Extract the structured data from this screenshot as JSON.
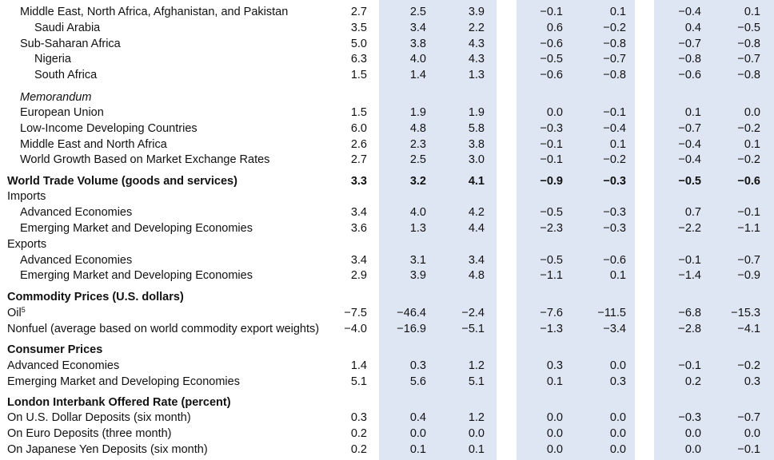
{
  "rows": [
    {
      "label": "Middle East, North Africa, Afghanistan, and Pakistan",
      "indent": 1,
      "values": [
        "2.7",
        "2.5",
        "3.9",
        "−0.1",
        "0.1",
        "−0.4",
        "0.1"
      ]
    },
    {
      "label": "Saudi Arabia",
      "indent": 2,
      "values": [
        "3.5",
        "3.4",
        "2.2",
        "0.6",
        "−0.2",
        "0.4",
        "−0.5"
      ]
    },
    {
      "label": "Sub-Saharan Africa",
      "indent": 1,
      "values": [
        "5.0",
        "3.8",
        "4.3",
        "−0.6",
        "−0.8",
        "−0.7",
        "−0.8"
      ]
    },
    {
      "label": "Nigeria",
      "indent": 2,
      "values": [
        "6.3",
        "4.0",
        "4.3",
        "−0.5",
        "−0.7",
        "−0.8",
        "−0.7"
      ]
    },
    {
      "label": "South Africa",
      "indent": 2,
      "values": [
        "1.5",
        "1.4",
        "1.3",
        "−0.6",
        "−0.8",
        "−0.6",
        "−0.8"
      ]
    },
    {
      "label": "Memorandum",
      "indent": 1,
      "italic": true
    },
    {
      "label": "European Union",
      "indent": 1,
      "values": [
        "1.5",
        "1.9",
        "1.9",
        "0.0",
        "−0.1",
        "0.1",
        "0.0"
      ]
    },
    {
      "label": "Low-Income Developing Countries",
      "indent": 1,
      "values": [
        "6.0",
        "4.8",
        "5.8",
        "−0.3",
        "−0.4",
        "−0.7",
        "−0.2"
      ]
    },
    {
      "label": "Middle East and North Africa",
      "indent": 1,
      "values": [
        "2.6",
        "2.3",
        "3.8",
        "−0.1",
        "0.1",
        "−0.4",
        "0.1"
      ]
    },
    {
      "label": "World Growth Based on Market Exchange Rates",
      "indent": 1,
      "values": [
        "2.7",
        "2.5",
        "3.0",
        "−0.1",
        "−0.2",
        "−0.4",
        "−0.2"
      ]
    },
    {
      "label": "World Trade Volume (goods and services)",
      "indent": 0,
      "bold": true,
      "values": [
        "3.3",
        "3.2",
        "4.1",
        "−0.9",
        "−0.3",
        "−0.5",
        "−0.6"
      ]
    },
    {
      "label": "Imports",
      "indent": 0
    },
    {
      "label": "Advanced Economies",
      "indent": 1,
      "values": [
        "3.4",
        "4.0",
        "4.2",
        "−0.5",
        "−0.3",
        "0.7",
        "−0.1"
      ]
    },
    {
      "label": "Emerging Market and Developing Economies",
      "indent": 1,
      "values": [
        "3.6",
        "1.3",
        "4.4",
        "−2.3",
        "−0.3",
        "−2.2",
        "−1.1"
      ]
    },
    {
      "label": "Exports",
      "indent": 0
    },
    {
      "label": "Advanced Economies",
      "indent": 1,
      "values": [
        "3.4",
        "3.1",
        "3.4",
        "−0.5",
        "−0.6",
        "−0.1",
        "−0.7"
      ]
    },
    {
      "label": "Emerging Market and Developing Economies",
      "indent": 1,
      "values": [
        "2.9",
        "3.9",
        "4.8",
        "−1.1",
        "0.1",
        "−1.4",
        "−0.9"
      ]
    },
    {
      "label": "Commodity Prices (U.S. dollars)",
      "indent": 0,
      "bold": true
    },
    {
      "label": "Oil",
      "sup": "5",
      "indent": 0,
      "values": [
        "−7.5",
        "−46.4",
        "−2.4",
        "−7.6",
        "−11.5",
        "−6.8",
        "−15.3"
      ]
    },
    {
      "label": "Nonfuel (average based on world commodity export weights)",
      "indent": 0,
      "values": [
        "−4.0",
        "−16.9",
        "−5.1",
        "−1.3",
        "−3.4",
        "−2.8",
        "−4.1"
      ]
    },
    {
      "label": "Consumer Prices",
      "indent": 0,
      "bold": true
    },
    {
      "label": "Advanced Economies",
      "indent": 0,
      "values": [
        "1.4",
        "0.3",
        "1.2",
        "0.3",
        "0.0",
        "−0.1",
        "−0.2"
      ]
    },
    {
      "label": "Emerging Market and Developing Economies",
      "indent": 0,
      "values": [
        "5.1",
        "5.6",
        "5.1",
        "0.1",
        "0.3",
        "0.2",
        "0.3"
      ]
    },
    {
      "label": "London Interbank Offered Rate (percent)",
      "indent": 0,
      "bold": true
    },
    {
      "label": "On U.S. Dollar Deposits (six month)",
      "indent": 0,
      "values": [
        "0.3",
        "0.4",
        "1.2",
        "0.0",
        "0.0",
        "−0.3",
        "−0.7"
      ]
    },
    {
      "label": "On Euro Deposits (three month)",
      "indent": 0,
      "values": [
        "0.2",
        "0.0",
        "0.0",
        "0.0",
        "0.0",
        "0.0",
        "0.0"
      ]
    },
    {
      "label": "On Japanese Yen Deposits (six month)",
      "indent": 0,
      "values": [
        "0.2",
        "0.1",
        "0.1",
        "0.0",
        "0.0",
        "0.0",
        "−0.1"
      ]
    }
  ]
}
